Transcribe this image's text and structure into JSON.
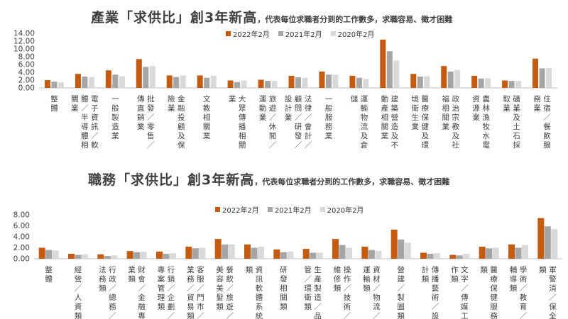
{
  "chart_data": [
    {
      "type": "bar",
      "title": "產業「求供比」創3年新高",
      "subtitle": "，代表每位求職者分到的工作數多，求職容易、徵才困難",
      "yticks": [
        "0.00",
        "2.00",
        "4.00",
        "6.00",
        "8.00",
        "10.00",
        "12.00",
        "14.00"
      ],
      "ylim": [
        0,
        14
      ],
      "legend": "top-center",
      "categories": [
        "整體",
        "電子資訊／軟體／半導體相關業",
        "一般製造業",
        "批發／零售／傳直銷業",
        "金融投顧及保險業",
        "文教相關業",
        "大眾傳播相關業",
        "旅遊／休閒／運動業",
        "法律／會計／顧問／研發／設計業",
        "一般服務業",
        "運輸物流及倉儲",
        "建築營造及不動產相關業",
        "醫療保健及環境衛生業",
        "政治宗教及社福相關業",
        "農林漁牧水電資源業",
        "礦業及土石採取業",
        "住宿／餐飲服務業"
      ],
      "series": [
        {
          "name": "2022年2月",
          "color": "#c55a11",
          "values": [
            2.0,
            3.6,
            4.5,
            7.4,
            3.2,
            3.2,
            1.9,
            2.1,
            3.1,
            4.2,
            3.1,
            12.4,
            3.6,
            5.6,
            3.1,
            1.9,
            7.5
          ]
        },
        {
          "name": "2021年2月",
          "color": "#a5a5a5",
          "values": [
            1.6,
            2.9,
            3.4,
            5.4,
            2.8,
            2.6,
            1.5,
            1.8,
            2.7,
            3.4,
            2.6,
            9.4,
            2.9,
            4.2,
            2.4,
            1.8,
            5.0
          ]
        },
        {
          "name": "2020年2月",
          "color": "#d9d9d9",
          "values": [
            1.4,
            2.8,
            3.0,
            5.6,
            3.2,
            3.1,
            1.9,
            1.8,
            2.6,
            3.4,
            2.3,
            7.0,
            3.0,
            4.6,
            2.5,
            1.8,
            5.1
          ]
        }
      ]
    },
    {
      "type": "bar",
      "title": "職務「求供比」創3年新高",
      "subtitle": "，代表每位求職者分到的工作數多，求職容易、徵才困難",
      "yticks": [
        "0.00",
        "2.00",
        "4.00",
        "6.00",
        "8.00"
      ],
      "ylim": [
        0,
        8
      ],
      "legend": "top-center",
      "categories": [
        "整體",
        "經營／人資類",
        "行政／總務／法務類",
        "財會／金融專業類",
        "行銷／企劃／專案管理類",
        "客服／門市／業務／貿易類",
        "餐飲／旅遊／美容美髮類",
        "資訊軟體系統類",
        "研發相關類",
        "生產製造／品管／環衛類",
        "操作／技術／維修類",
        "資材／物流／運輸類",
        "營建／製圖類",
        "傳播藝術／設計類",
        "文字／傳媒工作類",
        "醫療保健服務類",
        "學術／教育／輔導類",
        "軍警消／保全類"
      ],
      "series": [
        {
          "name": "2022年2月",
          "color": "#c55a11",
          "values": [
            2.0,
            0.9,
            0.8,
            1.4,
            1.3,
            2.2,
            3.6,
            2.6,
            1.7,
            1.8,
            3.6,
            2.2,
            5.3,
            1.1,
            0.7,
            2.2,
            2.6,
            7.4
          ]
        },
        {
          "name": "2021年2月",
          "color": "#a5a5a5",
          "values": [
            1.6,
            0.7,
            0.5,
            1.2,
            0.9,
            1.9,
            2.6,
            2.0,
            1.2,
            1.1,
            2.5,
            1.6,
            3.5,
            0.9,
            0.6,
            1.9,
            2.0,
            5.9
          ]
        },
        {
          "name": "2020年2月",
          "color": "#d9d9d9",
          "values": [
            1.5,
            0.8,
            0.6,
            1.3,
            1.0,
            2.0,
            2.6,
            2.2,
            1.3,
            1.1,
            2.0,
            1.4,
            2.9,
            1.0,
            0.9,
            2.0,
            2.5,
            5.4
          ]
        }
      ]
    }
  ]
}
